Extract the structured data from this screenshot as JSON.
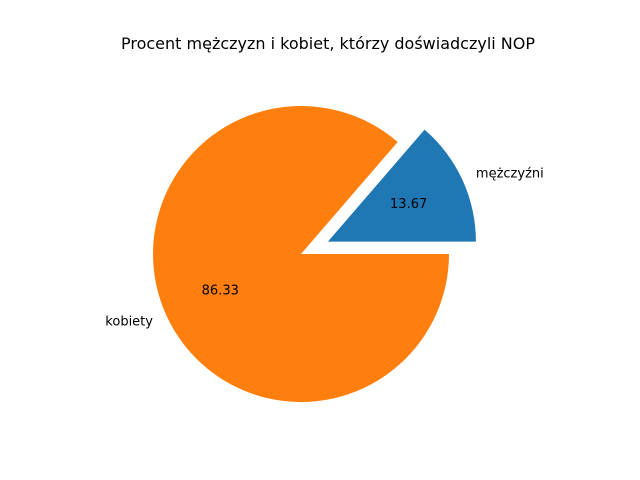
{
  "chart_data": {
    "type": "pie",
    "title": "Procent mężczyzn i kobiet, którzy doświadczyli NOP",
    "slices": [
      {
        "label": "mężczyźni",
        "value": 13.67,
        "value_label": "13.67",
        "color": "#1f77b4",
        "exploded": true
      },
      {
        "label": "kobiety",
        "value": 86.33,
        "value_label": "86.33",
        "color": "#ff7f0e",
        "exploded": false
      }
    ],
    "start_angle_deg": 0,
    "direction": "counterclockwise",
    "legend": "none"
  }
}
